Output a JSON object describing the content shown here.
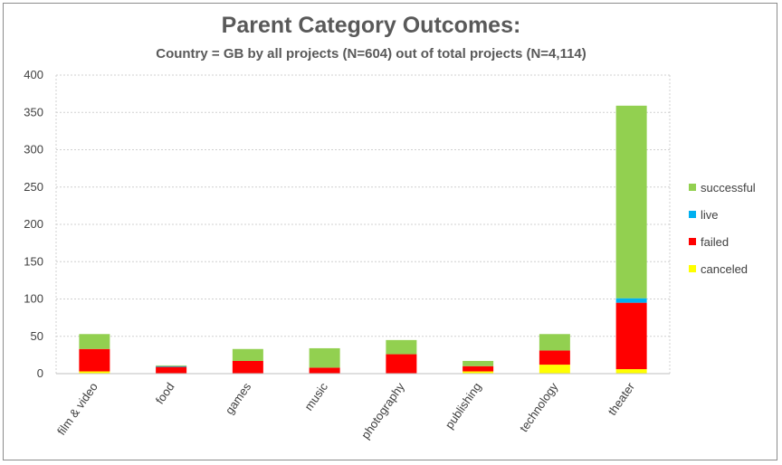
{
  "chart_data": {
    "type": "bar",
    "stacked": true,
    "title": "Parent Category Outcomes:",
    "subtitle": "Country = GB by all projects (N=604) out of total projects (N=4,114)",
    "xlabel": "",
    "ylabel": "",
    "ylim": [
      0,
      400
    ],
    "yticks": [
      0,
      50,
      100,
      150,
      200,
      250,
      300,
      350,
      400
    ],
    "grid": true,
    "legend_position": "right",
    "categories": [
      "film & video",
      "food",
      "games",
      "music",
      "photography",
      "publishing",
      "technology",
      "theater"
    ],
    "series": [
      {
        "name": "canceled",
        "color": "#ffff00",
        "values": [
          3,
          0,
          0,
          0,
          0,
          3,
          12,
          6
        ]
      },
      {
        "name": "failed",
        "color": "#ff0000",
        "values": [
          30,
          9,
          17,
          8,
          26,
          7,
          19,
          89
        ]
      },
      {
        "name": "live",
        "color": "#00b0f0",
        "values": [
          0,
          1,
          0,
          0,
          0,
          0,
          0,
          6
        ]
      },
      {
        "name": "successful",
        "color": "#92d050",
        "values": [
          20,
          1,
          16,
          26,
          19,
          7,
          22,
          258
        ]
      }
    ]
  }
}
